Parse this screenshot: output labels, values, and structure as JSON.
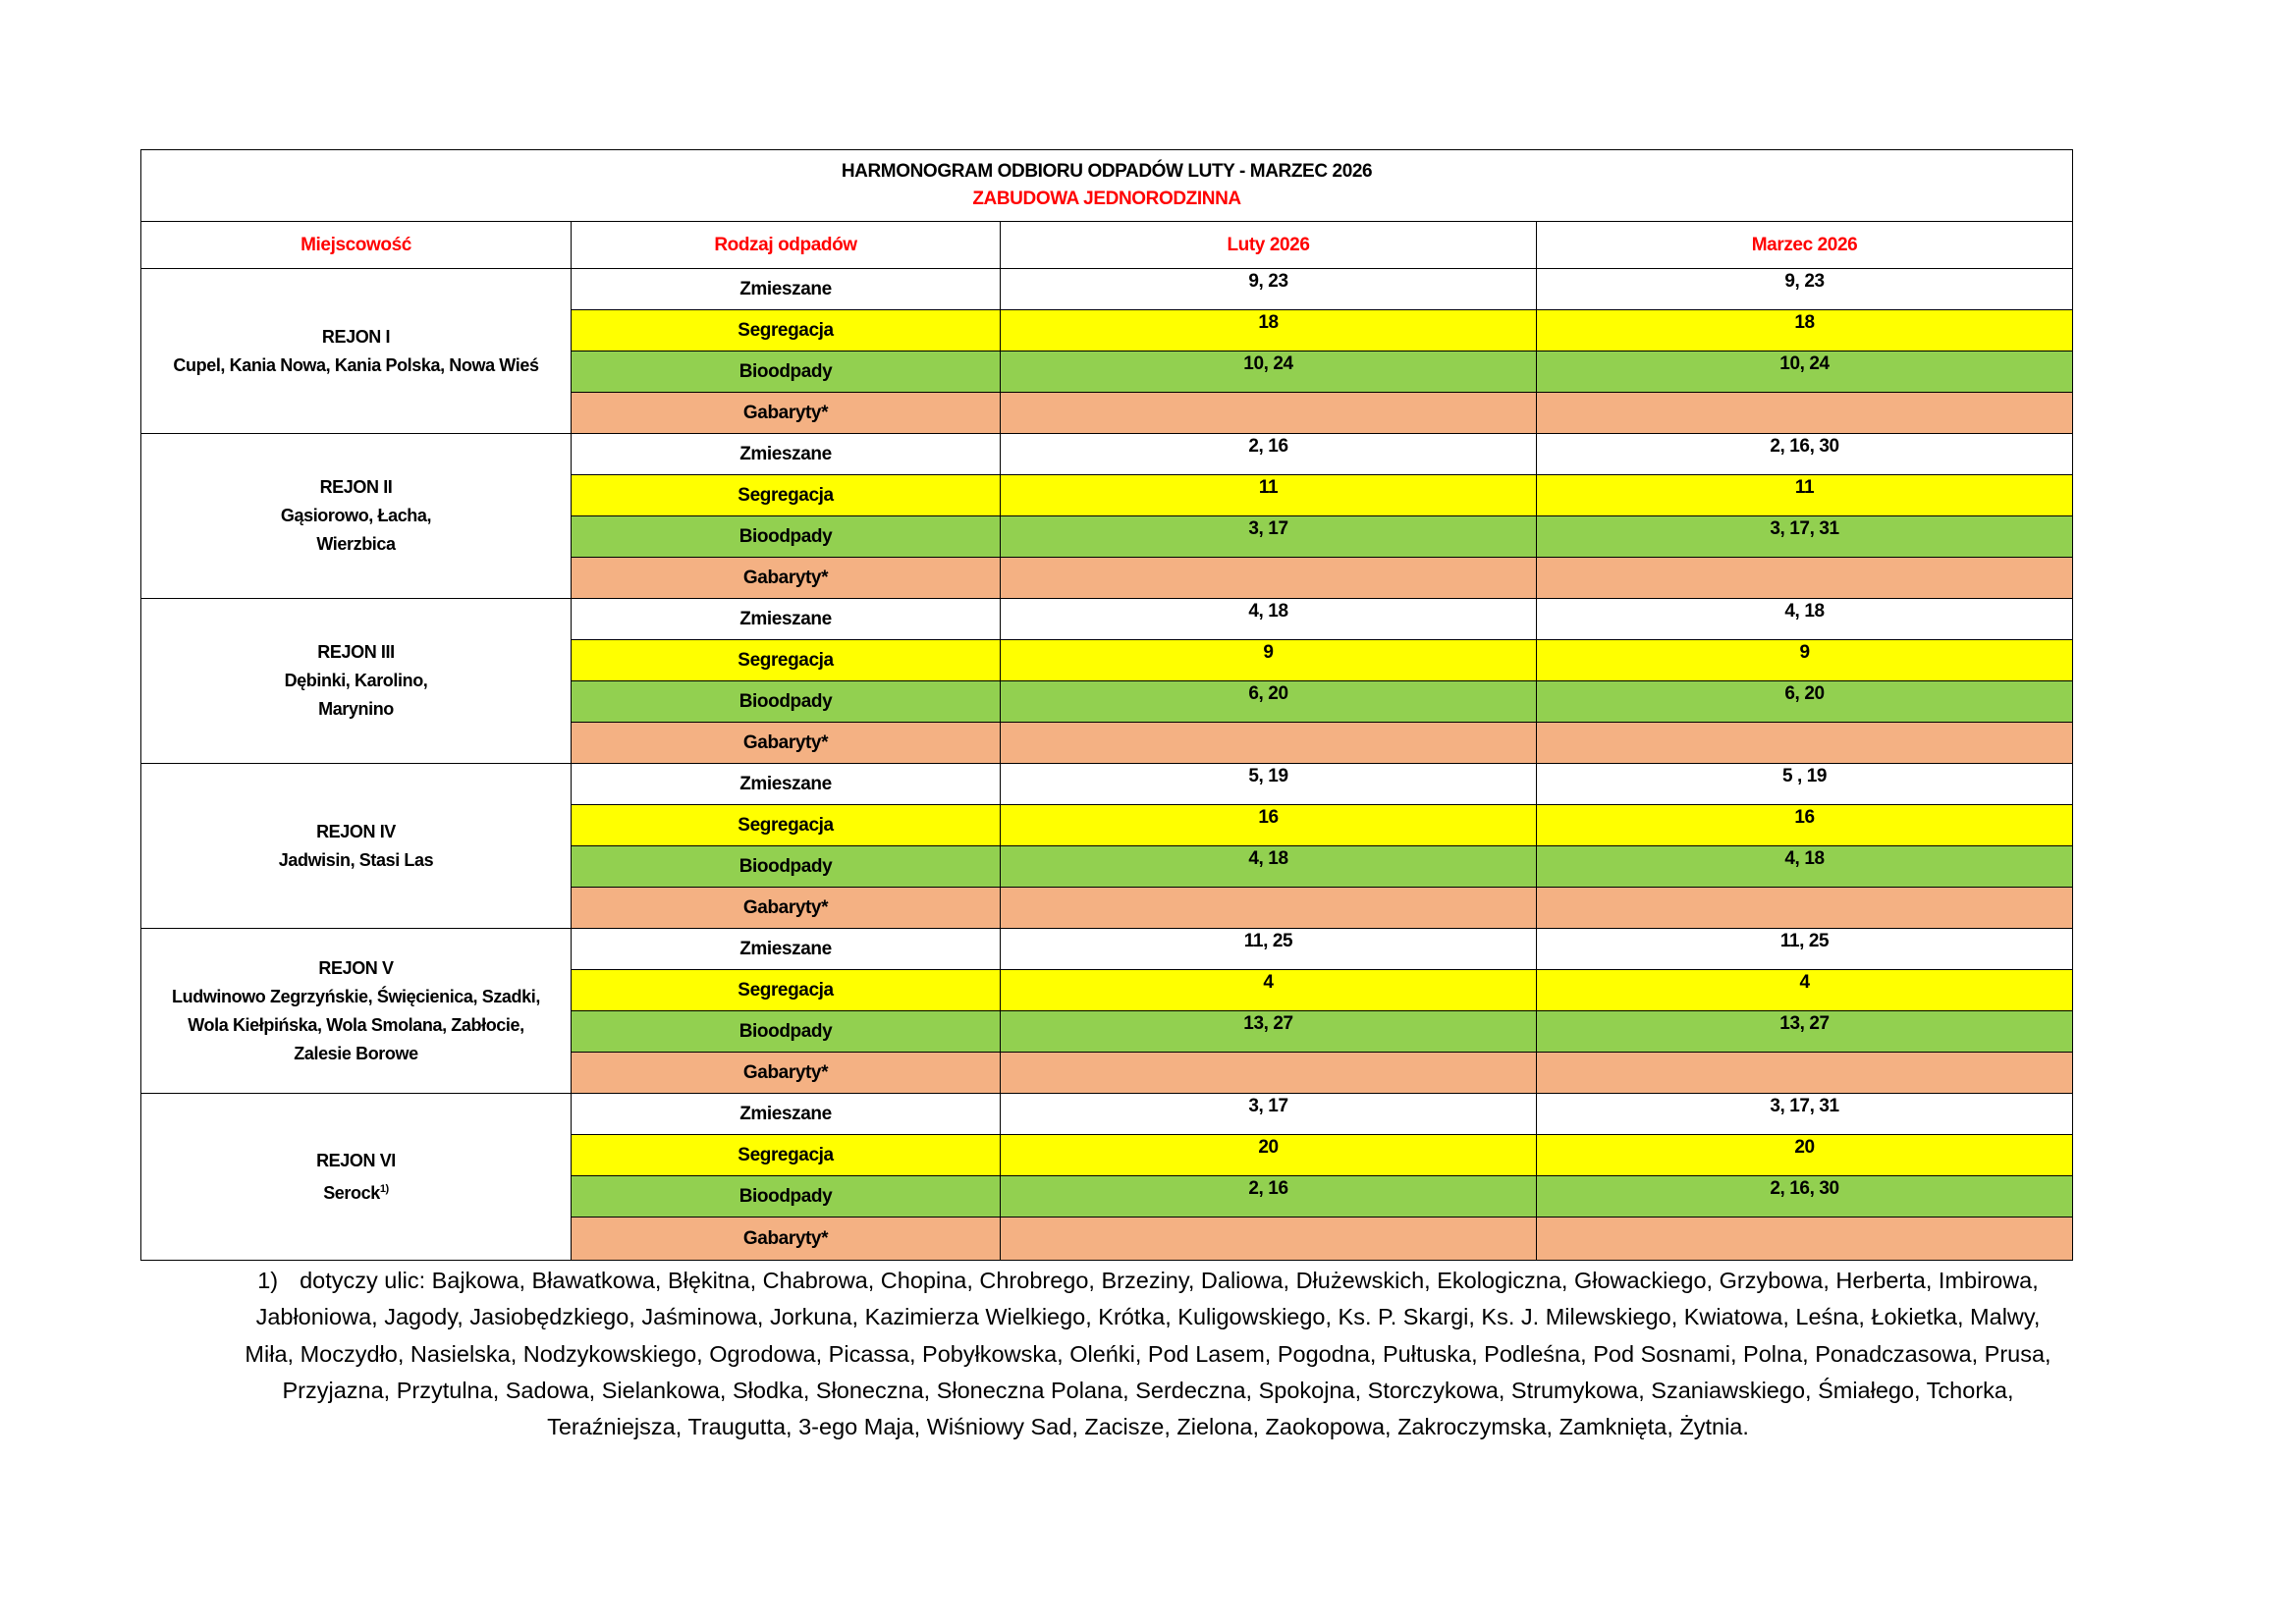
{
  "header": {
    "title": "HARMONOGRAM ODBIORU ODPADÓW LUTY - MARZEC 2026",
    "subtitle": "ZABUDOWA JEDNORODZINNA"
  },
  "table": {
    "columns": [
      "Miejscowość",
      "Rodzaj odpadów",
      "Luty 2026",
      "Marzec 2026"
    ],
    "regions": [
      {
        "name": "REJON I",
        "places": [
          "Cupel, Kania Nowa, Kania Polska, Nowa Wieś"
        ],
        "rows": [
          {
            "type": "Zmieszane",
            "luty": "9, 23",
            "marzec": "9, 23"
          },
          {
            "type": "Segregacja",
            "luty": "18",
            "marzec": "18"
          },
          {
            "type": "Bioodpady",
            "luty": "10, 24",
            "marzec": "10, 24"
          },
          {
            "type": "Gabaryty*"
          }
        ]
      },
      {
        "name": "REJON II",
        "places": [
          "Gąsiorowo, Łacha,",
          "Wierzbica"
        ],
        "rows": [
          {
            "type": "Zmieszane",
            "luty": "2, 16",
            "marzec": "2, 16, 30"
          },
          {
            "type": "Segregacja",
            "luty": "11",
            "marzec": "11"
          },
          {
            "type": "Bioodpady",
            "luty": "3, 17",
            "marzec": "3, 17, 31"
          },
          {
            "type": "Gabaryty*"
          }
        ]
      },
      {
        "name": "REJON III",
        "places": [
          "Dębinki, Karolino,",
          "Marynino"
        ],
        "rows": [
          {
            "type": "Zmieszane",
            "luty": "4, 18",
            "marzec": "4, 18"
          },
          {
            "type": "Segregacja",
            "luty": "9",
            "marzec": "9"
          },
          {
            "type": "Bioodpady",
            "luty": "6, 20",
            "marzec": "6, 20"
          },
          {
            "type": "Gabaryty*"
          }
        ]
      },
      {
        "name": "REJON IV",
        "places": [
          "Jadwisin, Stasi Las"
        ],
        "rows": [
          {
            "type": "Zmieszane",
            "luty": "5, 19",
            "marzec": "5 , 19"
          },
          {
            "type": "Segregacja",
            "luty": "16",
            "marzec": "16"
          },
          {
            "type": "Bioodpady",
            "luty": "4, 18",
            "marzec": "4, 18"
          },
          {
            "type": "Gabaryty*"
          }
        ]
      },
      {
        "name": "REJON V",
        "places": [
          "Ludwinowo Zegrzyńskie, Święcienica, Szadki,",
          "Wola Kiełpińska, Wola Smolana, Zabłocie,",
          "Zalesie Borowe"
        ],
        "rows": [
          {
            "type": "Zmieszane",
            "luty": "11, 25",
            "marzec": "11, 25"
          },
          {
            "type": "Segregacja",
            "luty": "4",
            "marzec": "4"
          },
          {
            "type": "Bioodpady",
            "luty": "13, 27",
            "marzec": "13, 27"
          },
          {
            "type": "Gabaryty*"
          }
        ]
      },
      {
        "name": "REJON VI",
        "places": [
          "Serock"
        ],
        "superscript": "1)",
        "rows": [
          {
            "type": "Zmieszane",
            "luty": "3, 17",
            "marzec": "3, 17, 31"
          },
          {
            "type": "Segregacja",
            "luty": "20",
            "marzec": "20"
          },
          {
            "type": "Bioodpady",
            "luty": "2, 16",
            "marzec": "2, 16, 30"
          },
          {
            "type": "Gabaryty*"
          }
        ]
      }
    ]
  },
  "footnote": {
    "marker": "1)",
    "lines": [
      "dotyczy ulic: Bajkowa, Bławatkowa, Błękitna, Chabrowa, Chopina, Chrobrego, Brzeziny, Daliowa, Dłużewskich, Ekologiczna, Głowackiego, Grzybowa, Herberta, Imbirowa,",
      "Jabłoniowa, Jagody, Jasiobędzkiego, Jaśminowa, Jorkuna, Kazimierza Wielkiego, Krótka, Kuligowskiego, Ks. P. Skargi, Ks. J. Milewskiego, Kwiatowa, Leśna, Łokietka, Malwy,",
      "Miła, Moczydło, Nasielska, Nodzykowskiego, Ogrodowa, Picassa, Pobyłkowska, Oleńki, Pod Lasem, Pogodna, Pułtuska, Podleśna, Pod Sosnami, Polna, Ponadczasowa, Prusa,",
      "Przyjazna, Przytulna, Sadowa, Sielankowa, Słodka, Słoneczna, Słoneczna Polana,  Serdeczna, Spokojna, Storczykowa, Strumykowa, Szaniawskiego,  Śmiałego, Tchorka,",
      "Teraźniejsza, Traugutta, 3-ego Maja, Wiśniowy Sad, Zacisze, Zielona, Zaokopowa, Zakroczymska, Zamknięta, Żytnia."
    ]
  }
}
